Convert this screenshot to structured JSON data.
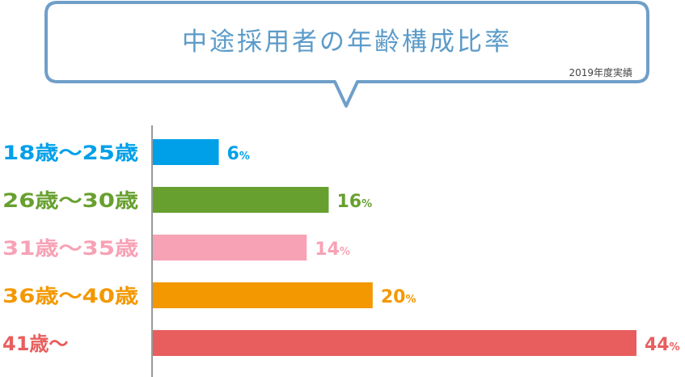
{
  "chart_data": {
    "type": "bar",
    "orientation": "horizontal",
    "title": "中途採用者の年齢構成比率",
    "subtitle": "2019年度実績",
    "categories": [
      "18歳〜25歳",
      "26歳〜30歳",
      "31歳〜35歳",
      "36歳〜40歳",
      "41歳〜"
    ],
    "values": [
      6,
      16,
      14,
      20,
      44
    ],
    "value_labels": [
      "6",
      "16",
      "14",
      "20",
      "44"
    ],
    "unit": "%",
    "colors": [
      "#00a0e9",
      "#68a030",
      "#f7a2b5",
      "#f39800",
      "#e85e5e"
    ],
    "title_color": "#5b9bc9",
    "callout_border_color": "#6f9fc9",
    "grid": false,
    "legend": "none"
  }
}
